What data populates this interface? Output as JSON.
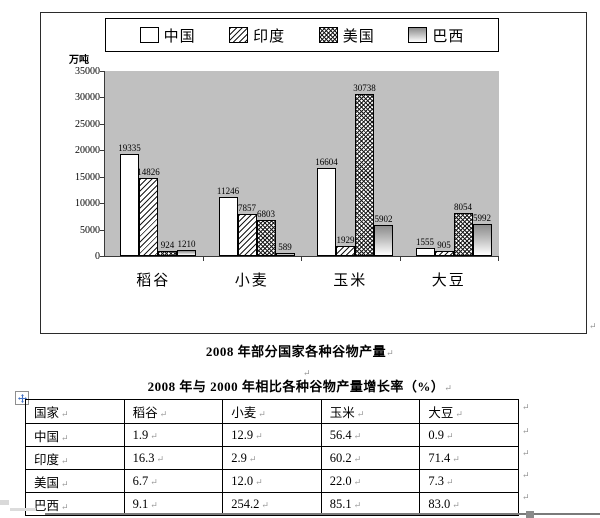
{
  "document": {
    "paragraph_mark": "↵"
  },
  "chart_data": {
    "type": "bar",
    "title": "2008 年部分国家各种谷物产量",
    "unit_label": "万吨",
    "categories": [
      "稻谷",
      "小麦",
      "玉米",
      "大豆"
    ],
    "series": [
      {
        "name": "中国",
        "pattern": "plain-white",
        "values": [
          19335,
          11246,
          16604,
          1555
        ]
      },
      {
        "name": "印度",
        "pattern": "diagonal-hatch-light",
        "values": [
          14826,
          7857,
          1929,
          905
        ]
      },
      {
        "name": "美国",
        "pattern": "diagonal-hatch-dense",
        "values": [
          924,
          6803,
          30738,
          8054
        ]
      },
      {
        "name": "巴西",
        "pattern": "gray-gradient",
        "values": [
          1210,
          589,
          5902,
          5992
        ]
      }
    ],
    "ylim": [
      0,
      35000
    ],
    "yticks": [
      0,
      5000,
      10000,
      15000,
      20000,
      25000,
      30000,
      35000
    ],
    "legend_position": "top",
    "grid": false,
    "plot_background": "#c0c0c0",
    "data_labels": true
  },
  "growth_table": {
    "title": "2008 年与 2000 年相比各种谷物产量增长率（%）",
    "headers": [
      "国家",
      "稻谷",
      "小麦",
      "玉米",
      "大豆"
    ],
    "rows": [
      [
        "中国",
        "1.9",
        "12.9",
        "56.4",
        "0.9"
      ],
      [
        "印度",
        "16.3",
        "2.9",
        "60.2",
        "71.4"
      ],
      [
        "美国",
        "6.7",
        "12.0",
        "22.0",
        "7.3"
      ],
      [
        "巴西",
        "9.1",
        "254.2",
        "85.1",
        "83.0"
      ]
    ]
  },
  "colors": {
    "plot_background": "#c0c0c0",
    "frame_border": "#2b2b2b",
    "mark_gray": "#949494",
    "handle_blue": "#4472c4",
    "bottom_rule_gray": "#7a7a7a"
  }
}
